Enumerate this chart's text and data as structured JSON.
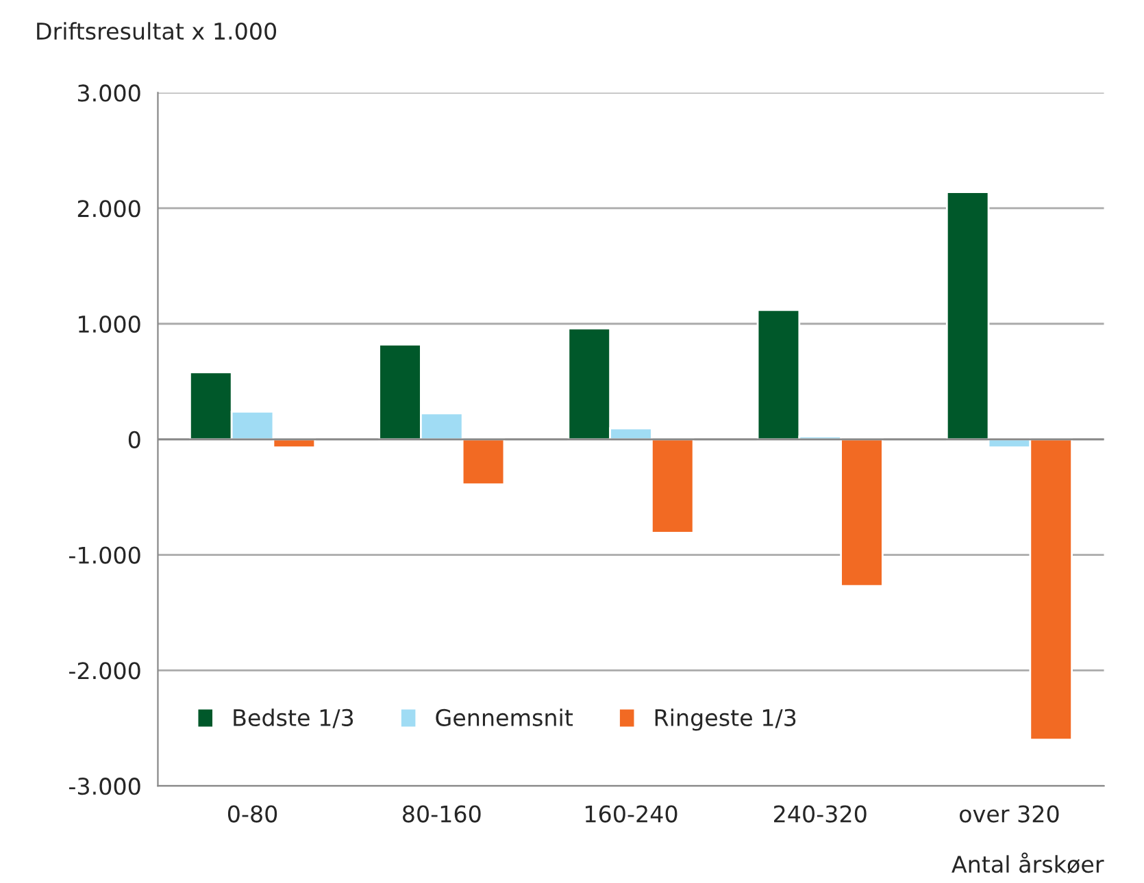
{
  "chart_data": {
    "type": "bar",
    "ylabel": "Driftsresultat x 1.000",
    "xlabel": "Antal årskøer",
    "categories": [
      "0-80",
      "80-160",
      "160-240",
      "240-320",
      "over 320"
    ],
    "series": [
      {
        "name": "Bedste 1/3",
        "color": "#00582a",
        "values": [
          580,
          820,
          960,
          1120,
          2140
        ]
      },
      {
        "name": "Gennemsnit",
        "color": "#a0dcf4",
        "values": [
          240,
          225,
          95,
          25,
          -70
        ]
      },
      {
        "name": "Ringeste 1/3",
        "color": "#f26a23",
        "values": [
          -70,
          -390,
          -810,
          -1270,
          -2600
        ]
      }
    ],
    "ylim": [
      -3000,
      3000
    ],
    "yticks": [
      {
        "value": -3000,
        "label": "-3.000"
      },
      {
        "value": -2000,
        "label": "-2.000"
      },
      {
        "value": -1000,
        "label": "-1.000"
      },
      0,
      {
        "value": 1000,
        "label": "1.000"
      },
      {
        "value": 2000,
        "label": "2.000"
      },
      {
        "value": 3000,
        "label": "3.000"
      }
    ],
    "grid": "y",
    "legend": "bottom left"
  }
}
